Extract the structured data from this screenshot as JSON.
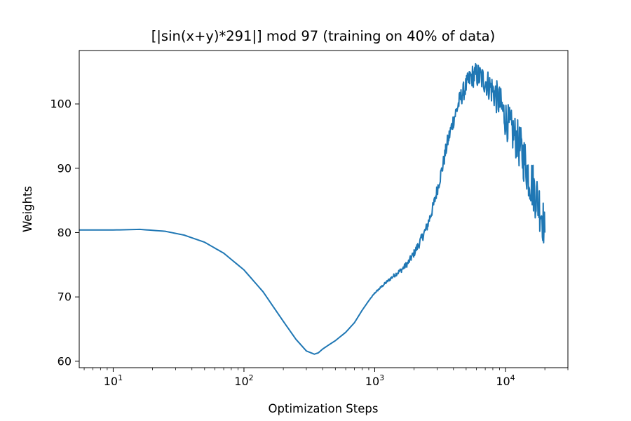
{
  "chart_data": {
    "type": "line",
    "title": "[|sin(x+y)*291|] mod 97 (training on 40% of data)",
    "xlabel": "Optimization Steps",
    "ylabel": "Weights",
    "xscale": "log",
    "xlim": [
      5.5,
      30000
    ],
    "ylim": [
      59,
      108.3
    ],
    "grid": false,
    "x_ticks": [
      {
        "value": 10,
        "base": "10",
        "exp": "1"
      },
      {
        "value": 100,
        "base": "10",
        "exp": "2"
      },
      {
        "value": 1000,
        "base": "10",
        "exp": "3"
      },
      {
        "value": 10000,
        "base": "10",
        "exp": "4"
      }
    ],
    "y_ticks": [
      {
        "value": 60,
        "label": "60"
      },
      {
        "value": 70,
        "label": "70"
      },
      {
        "value": 80,
        "label": "80"
      },
      {
        "value": 90,
        "label": "90"
      },
      {
        "value": 100,
        "label": "100"
      }
    ],
    "line_color": "#1f77b4",
    "series": [
      {
        "x": [
          5.5,
          8,
          10,
          16,
          25,
          35,
          50,
          70,
          100,
          140,
          200,
          250,
          300,
          345,
          370,
          400,
          450,
          500,
          600,
          700,
          800,
          900,
          1000,
          1200,
          1400,
          1600,
          1800,
          2000,
          2200,
          2500,
          2800,
          3000,
          3300,
          3600,
          4000,
          4500,
          5000,
          5500,
          6000,
          7000,
          8000,
          9000,
          10000,
          11000,
          12000,
          13000,
          14000,
          15000,
          16000,
          17000,
          18000,
          19000,
          20000
        ],
        "y": [
          80.4,
          80.4,
          80.4,
          80.5,
          80.2,
          79.6,
          78.5,
          76.8,
          74.2,
          70.8,
          66.2,
          63.4,
          61.6,
          61.1,
          61.3,
          61.9,
          62.6,
          63.2,
          64.5,
          66.0,
          67.9,
          69.4,
          70.6,
          72.1,
          73.3,
          74.2,
          75.3,
          76.8,
          78.4,
          80.8,
          84.0,
          86.6,
          90.2,
          94.0,
          97.5,
          100.8,
          102.8,
          104.3,
          104.5,
          103.6,
          102.1,
          100.2,
          97.8,
          96.0,
          94.8,
          93.0,
          91.2,
          89.0,
          87.5,
          86.0,
          84.5,
          83.0,
          80.0
        ],
        "noise_amplitude": [
          0,
          0,
          0,
          0,
          0,
          0,
          0,
          0,
          0,
          0,
          0,
          0,
          0,
          0,
          0,
          0,
          0,
          0,
          0,
          0,
          0,
          0,
          0.1,
          0.2,
          0.3,
          0.4,
          0.5,
          0.6,
          0.7,
          0.8,
          0.9,
          1.0,
          1.1,
          1.2,
          1.3,
          1.4,
          1.6,
          1.8,
          2.0,
          2.2,
          2.5,
          2.8,
          3.0,
          3.2,
          3.4,
          3.6,
          3.8,
          3.9,
          4.0,
          4.0,
          4.0,
          4.0,
          3.0
        ]
      }
    ]
  }
}
